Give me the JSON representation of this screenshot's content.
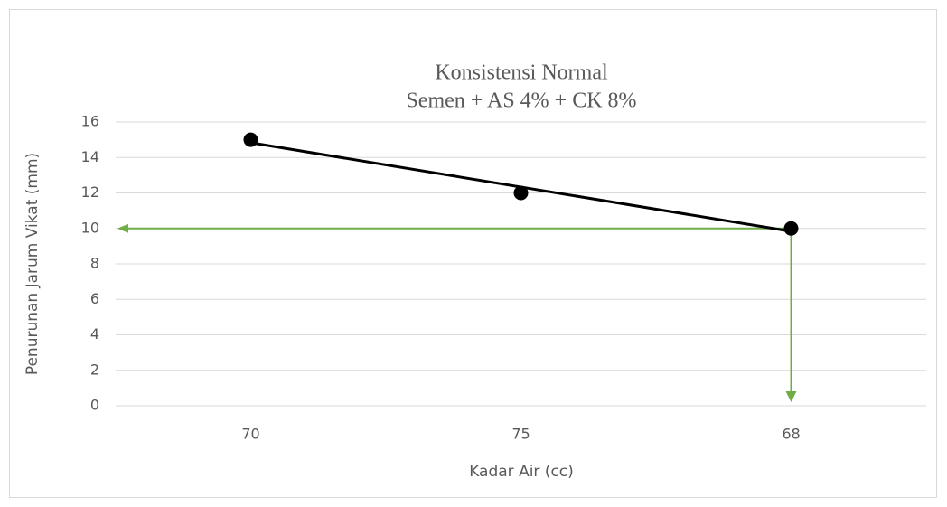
{
  "chart_data": {
    "type": "scatter",
    "title": "Konsistensi Normal",
    "subtitle": "Semen + AS 4% + CK 8%",
    "x_label": "Kadar Air (cc)",
    "y_label": "Penurunan Jarum Vikat (mm)",
    "categories": [
      "70",
      "75",
      "68"
    ],
    "values": [
      15,
      12,
      10
    ],
    "color": "#000000",
    "trendline": "linear",
    "guide_color": "#70ad47",
    "ylim": [
      0,
      16
    ],
    "yticks": [
      0,
      2,
      4,
      6,
      8,
      10,
      12,
      14,
      16
    ],
    "grid": true
  }
}
